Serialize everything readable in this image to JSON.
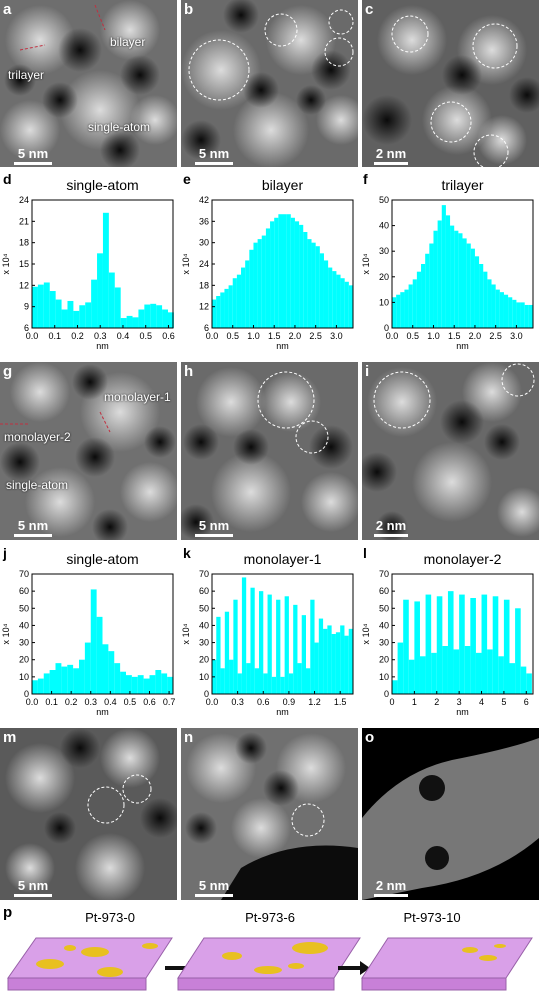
{
  "micrographs": [
    {
      "id": "a",
      "label": "a",
      "scale": "5 nm",
      "annotations": [
        "bilayer",
        "trilayer",
        "single-atom"
      ]
    },
    {
      "id": "b",
      "label": "b",
      "scale": "5 nm",
      "annotations": []
    },
    {
      "id": "c",
      "label": "c",
      "scale": "2 nm",
      "annotations": []
    },
    {
      "id": "g",
      "label": "g",
      "scale": "5 nm",
      "annotations": [
        "monolayer-1",
        "monolayer-2",
        "single-atom"
      ]
    },
    {
      "id": "h",
      "label": "h",
      "scale": "5 nm",
      "annotations": []
    },
    {
      "id": "i",
      "label": "i",
      "scale": "2 nm",
      "annotations": []
    },
    {
      "id": "m",
      "label": "m",
      "scale": "5 nm",
      "annotations": []
    },
    {
      "id": "n",
      "label": "n",
      "scale": "5 nm",
      "annotations": []
    },
    {
      "id": "o",
      "label": "o",
      "scale": "2 nm",
      "annotations": []
    }
  ],
  "chart_data": [
    {
      "id": "d",
      "label": "d",
      "type": "bar",
      "title": "single-atom",
      "xlabel": "nm",
      "ylabel": "x 10⁴",
      "xlim": [
        0,
        0.62
      ],
      "ylim": [
        6,
        24
      ],
      "xticks": [
        0.0,
        0.1,
        0.2,
        0.3,
        0.4,
        0.5,
        0.6
      ],
      "yticks": [
        6,
        9,
        12,
        15,
        18,
        21,
        24
      ],
      "x": [
        0.0,
        0.026,
        0.052,
        0.078,
        0.104,
        0.13,
        0.156,
        0.182,
        0.208,
        0.234,
        0.26,
        0.286,
        0.312,
        0.338,
        0.364,
        0.39,
        0.416,
        0.442,
        0.468,
        0.494,
        0.52,
        0.546,
        0.572,
        0.598
      ],
      "values": [
        11.8,
        12.1,
        12.4,
        11.2,
        10.0,
        8.6,
        9.8,
        8.4,
        9.2,
        9.6,
        12.8,
        16.5,
        22.2,
        13.8,
        11.7,
        7.4,
        7.7,
        7.5,
        8.6,
        9.3,
        9.4,
        9.2,
        8.6,
        8.2
      ]
    },
    {
      "id": "e",
      "label": "e",
      "type": "bar",
      "title": "bilayer",
      "xlabel": "nm",
      "ylabel": "x 10⁴",
      "xlim": [
        0,
        3.4
      ],
      "ylim": [
        6,
        42
      ],
      "xticks": [
        0.0,
        0.5,
        1.0,
        1.5,
        2.0,
        2.5,
        3.0
      ],
      "yticks": [
        6,
        12,
        18,
        24,
        30,
        36,
        42
      ],
      "x": [
        0.0,
        0.1,
        0.2,
        0.3,
        0.4,
        0.5,
        0.6,
        0.7,
        0.8,
        0.9,
        1.0,
        1.1,
        1.2,
        1.3,
        1.4,
        1.5,
        1.6,
        1.7,
        1.8,
        1.9,
        2.0,
        2.1,
        2.2,
        2.3,
        2.4,
        2.5,
        2.6,
        2.7,
        2.8,
        2.9,
        3.0,
        3.1,
        3.2,
        3.3
      ],
      "values": [
        14,
        15,
        16,
        17,
        18,
        20,
        21,
        23,
        25,
        28,
        30,
        31,
        32,
        34,
        36,
        37,
        38,
        38,
        38,
        37,
        36,
        35,
        33,
        31,
        30,
        29,
        27,
        25,
        23,
        22,
        21,
        20,
        19,
        18
      ]
    },
    {
      "id": "f",
      "label": "f",
      "type": "bar",
      "title": "trilayer",
      "xlabel": "nm",
      "ylabel": "x 10⁴",
      "xlim": [
        0,
        3.4
      ],
      "ylim": [
        0,
        50
      ],
      "xticks": [
        0.0,
        0.5,
        1.0,
        1.5,
        2.0,
        2.5,
        3.0
      ],
      "yticks": [
        0,
        10,
        20,
        30,
        40,
        50
      ],
      "x": [
        0.0,
        0.1,
        0.2,
        0.3,
        0.4,
        0.5,
        0.6,
        0.7,
        0.8,
        0.9,
        1.0,
        1.1,
        1.2,
        1.3,
        1.4,
        1.5,
        1.6,
        1.7,
        1.8,
        1.9,
        2.0,
        2.1,
        2.2,
        2.3,
        2.4,
        2.5,
        2.6,
        2.7,
        2.8,
        2.9,
        3.0,
        3.1,
        3.2,
        3.3
      ],
      "values": [
        12,
        13,
        14,
        15,
        17,
        19,
        22,
        25,
        29,
        33,
        38,
        42,
        48,
        44,
        40,
        38,
        37,
        35,
        33,
        31,
        28,
        25,
        22,
        19,
        17,
        15,
        14,
        13,
        12,
        11,
        10,
        10,
        9,
        9
      ]
    },
    {
      "id": "j",
      "label": "j",
      "type": "bar",
      "title": "single-atom",
      "xlabel": "nm",
      "ylabel": "x 10⁴",
      "xlim": [
        0,
        0.72
      ],
      "ylim": [
        0,
        70
      ],
      "xticks": [
        0.0,
        0.1,
        0.2,
        0.3,
        0.4,
        0.5,
        0.6,
        0.7
      ],
      "yticks": [
        0,
        10,
        20,
        30,
        40,
        50,
        60,
        70
      ],
      "x": [
        0.0,
        0.03,
        0.06,
        0.09,
        0.12,
        0.15,
        0.18,
        0.21,
        0.24,
        0.27,
        0.3,
        0.33,
        0.36,
        0.39,
        0.42,
        0.45,
        0.48,
        0.51,
        0.54,
        0.57,
        0.6,
        0.63,
        0.66,
        0.69
      ],
      "values": [
        8,
        9,
        12,
        14,
        18,
        16,
        17,
        15,
        20,
        30,
        61,
        45,
        29,
        25,
        18,
        13,
        11,
        10,
        11,
        9,
        11,
        14,
        12,
        10
      ]
    },
    {
      "id": "k",
      "label": "k",
      "type": "bar",
      "title": "monolayer-1",
      "xlabel": "nm",
      "ylabel": "x 10⁴",
      "xlim": [
        0,
        1.65
      ],
      "ylim": [
        0,
        70
      ],
      "xticks": [
        0.0,
        0.3,
        0.6,
        0.9,
        1.2,
        1.5
      ],
      "yticks": [
        0,
        10,
        20,
        30,
        40,
        50,
        60,
        70
      ],
      "x": [
        0.0,
        0.05,
        0.1,
        0.15,
        0.2,
        0.25,
        0.3,
        0.35,
        0.4,
        0.45,
        0.5,
        0.55,
        0.6,
        0.65,
        0.7,
        0.75,
        0.8,
        0.85,
        0.9,
        0.95,
        1.0,
        1.05,
        1.1,
        1.15,
        1.2,
        1.25,
        1.3,
        1.35,
        1.4,
        1.45,
        1.5,
        1.55,
        1.6
      ],
      "values": [
        20,
        45,
        15,
        48,
        20,
        55,
        12,
        68,
        18,
        62,
        15,
        60,
        12,
        58,
        10,
        55,
        10,
        57,
        12,
        52,
        18,
        46,
        15,
        55,
        30,
        44,
        38,
        40,
        35,
        36,
        40,
        34,
        38
      ]
    },
    {
      "id": "l",
      "label": "l",
      "type": "bar",
      "title": "monolayer-2",
      "xlabel": "nm",
      "ylabel": "x 10⁴",
      "xlim": [
        0,
        6.3
      ],
      "ylim": [
        0,
        70
      ],
      "xticks": [
        0,
        1,
        2,
        3,
        4,
        5,
        6
      ],
      "yticks": [
        0,
        10,
        20,
        30,
        40,
        50,
        60,
        70
      ],
      "x": [
        0.0,
        0.25,
        0.5,
        0.75,
        1.0,
        1.25,
        1.5,
        1.75,
        2.0,
        2.25,
        2.5,
        2.75,
        3.0,
        3.25,
        3.5,
        3.75,
        4.0,
        4.25,
        4.5,
        4.75,
        5.0,
        5.25,
        5.5,
        5.75,
        6.0
      ],
      "values": [
        8,
        30,
        55,
        20,
        54,
        22,
        58,
        24,
        57,
        28,
        60,
        26,
        58,
        28,
        56,
        24,
        58,
        26,
        57,
        22,
        55,
        18,
        50,
        16,
        12
      ]
    }
  ],
  "schematic": {
    "label": "p",
    "stages": [
      "Pt-973-0",
      "Pt-973-6",
      "Pt-973-10"
    ]
  },
  "colors": {
    "bar": "#00ffff",
    "bar_edge": "#00d8d8",
    "support": "#d9a0e8",
    "cluster": "#e8c020"
  }
}
